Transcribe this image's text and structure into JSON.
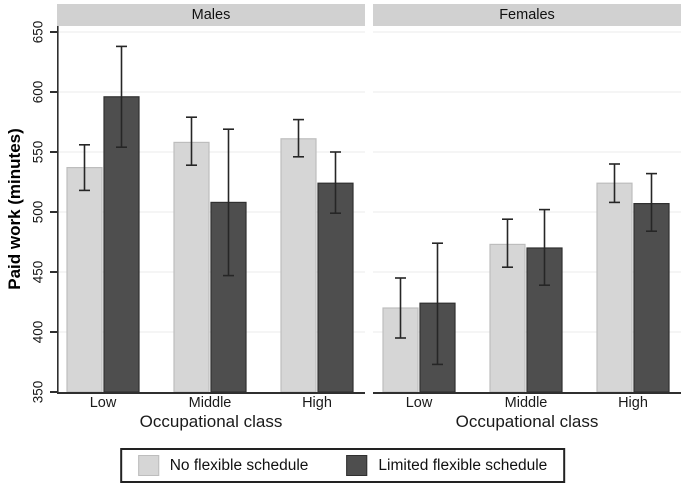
{
  "chart_data": {
    "type": "bar",
    "title": "",
    "ylabel": "Paid work (minutes)",
    "xlabel": "Occupational class",
    "ylim": [
      350,
      650
    ],
    "yticks": [
      350,
      400,
      450,
      500,
      550,
      600,
      650
    ],
    "grid": true,
    "legend_position": "bottom-box",
    "error_bars": true,
    "series_styles": [
      {
        "name": "No flexible schedule",
        "fill": "#d6d6d6",
        "stroke": "#bdbdbd"
      },
      {
        "name": "Limited flexible schedule",
        "fill": "#4e4e4e",
        "stroke": "#303030"
      }
    ],
    "facets": [
      {
        "title": "Males",
        "categories": [
          "Low",
          "Middle",
          "High"
        ],
        "series": [
          {
            "name": "No flexible schedule",
            "values": [
              537,
              558,
              561
            ],
            "ci_low": [
              518,
              539,
              546
            ],
            "ci_high": [
              556,
              579,
              577
            ]
          },
          {
            "name": "Limited flexible schedule",
            "values": [
              596,
              508,
              524
            ],
            "ci_low": [
              554,
              447,
              499
            ],
            "ci_high": [
              638,
              569,
              550
            ]
          }
        ]
      },
      {
        "title": "Females",
        "categories": [
          "Low",
          "Middle",
          "High"
        ],
        "series": [
          {
            "name": "No flexible schedule",
            "values": [
              420,
              473,
              524
            ],
            "ci_low": [
              395,
              454,
              508
            ],
            "ci_high": [
              445,
              494,
              540
            ]
          },
          {
            "name": "Limited flexible schedule",
            "values": [
              424,
              470,
              507
            ],
            "ci_low": [
              373,
              439,
              484
            ],
            "ci_high": [
              474,
              502,
              532
            ]
          }
        ]
      }
    ],
    "style": {
      "grid_color": "#ebebeb",
      "axis_color": "#2f2f2f",
      "error_color": "#262626",
      "strip_bg": "#d1d1d1",
      "background": "#ffffff"
    }
  }
}
